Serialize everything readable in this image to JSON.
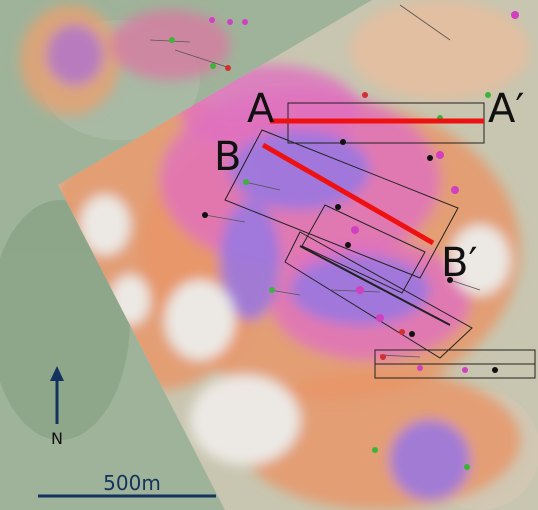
{
  "labels": {
    "a": "A",
    "a_prime": "A′",
    "b": "B",
    "b_prime": "B′"
  },
  "north": "N",
  "scale_bar": "500m"
}
